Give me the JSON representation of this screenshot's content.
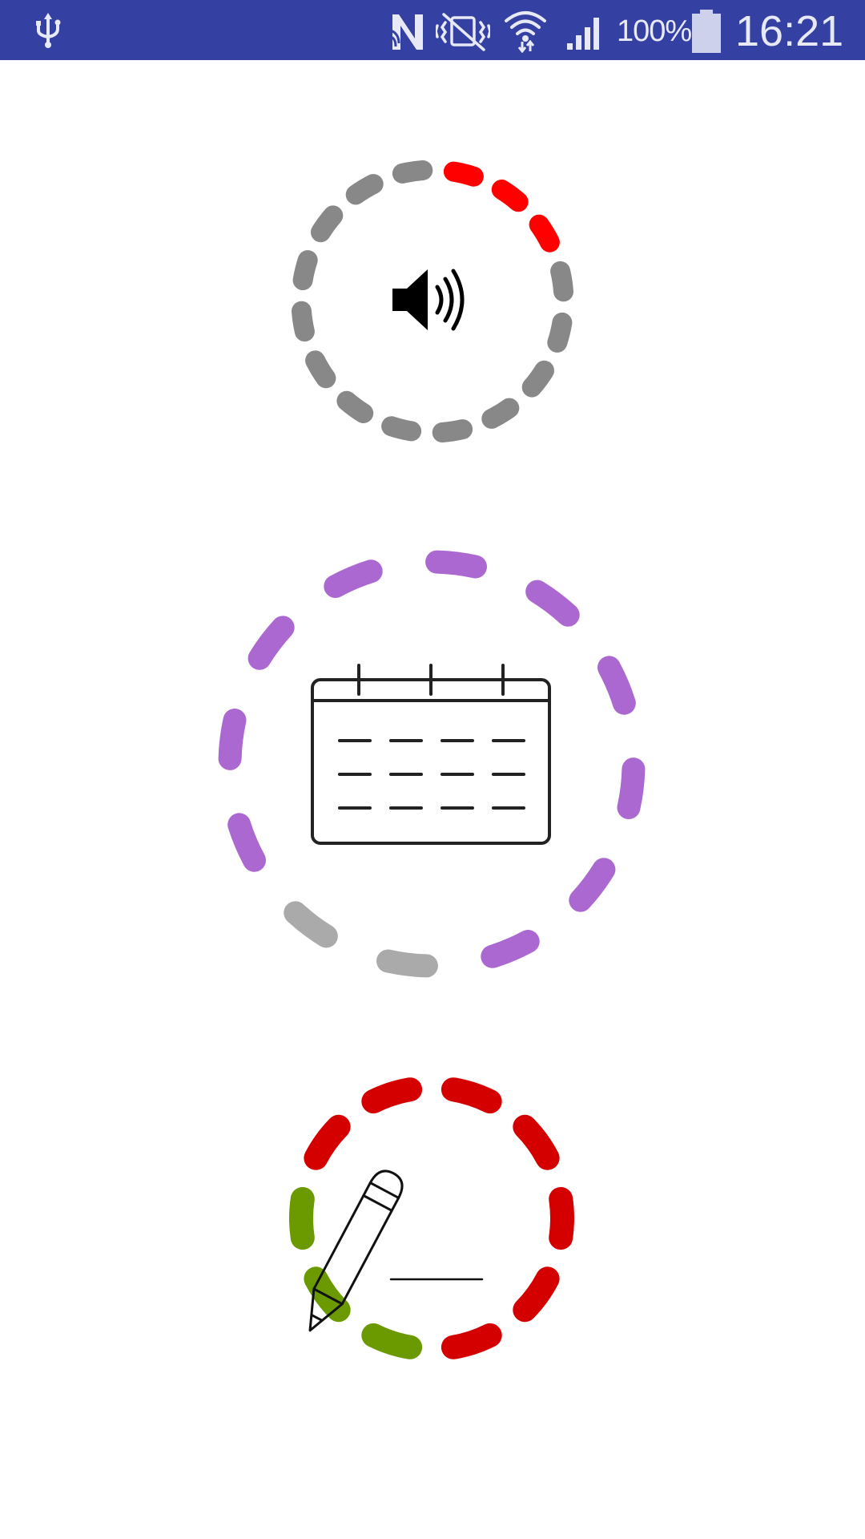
{
  "status_bar": {
    "background": "#3441a3",
    "icons": [
      "usb-icon",
      "nfc-icon",
      "vibrate-icon",
      "wifi-icon",
      "cell-signal-icon",
      "battery-icon"
    ],
    "battery_percent": "100%",
    "time": "16:21"
  },
  "progress_rings": [
    {
      "name": "sound-progress",
      "icon": "speaker-icon",
      "segments_total": 16,
      "segments_done": 3,
      "done_color": "#ff0000",
      "remaining_color": "#888888"
    },
    {
      "name": "calendar-progress",
      "icon": "calendar-icon",
      "segments_total": 12,
      "segments_done": 10,
      "done_color": "#ab68d0",
      "remaining_color": "#aaaaaa"
    },
    {
      "name": "writing-progress",
      "icon": "pencil-icon",
      "segments_total": 10,
      "segments_done": 7,
      "done_color": "#d40000",
      "remaining_color": "#6a9a00"
    }
  ]
}
